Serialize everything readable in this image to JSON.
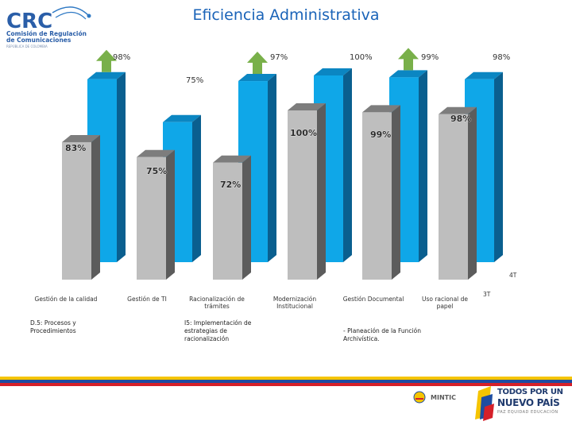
{
  "header": {
    "title": "Eficiencia Administrativa",
    "logo_text": "CRC",
    "logo_org_line1": "Comisión de Regulación",
    "logo_org_line2": "de Comunicaciones",
    "logo_org_line3": "REPÚBLICA DE COLOMBIA"
  },
  "chart_data": {
    "type": "bar",
    "title": "Eficiencia Administrativa",
    "categories": [
      "Gestión de la calidad",
      "Gestión de TI",
      "Racionalización de trámites",
      "Modernización Institucional",
      "Gestión Documental",
      "Uso racional de papel"
    ],
    "series": [
      {
        "name": "gray",
        "values": [
          83,
          75,
          72,
          100,
          99,
          98
        ],
        "labels": [
          "83%",
          "75%",
          "72%",
          "100%",
          "99%",
          "98%"
        ]
      },
      {
        "name": "blue",
        "values": [
          98,
          75,
          97,
          100,
          99,
          98
        ],
        "labels": [
          "98%",
          "75%",
          "97%",
          "100%",
          "99%",
          "98%"
        ]
      }
    ],
    "ylim": [
      0,
      100
    ],
    "axis_labels": {
      "right_top": "4T",
      "right_bottom": "3T"
    },
    "colors": {
      "gray": "#bebebe",
      "blue": "#0fa7e8",
      "arrow": "#79b04a"
    }
  },
  "notes": {
    "n1": "D.5: Procesos y Procedimientos",
    "n2": "I5: Implementación de estrategias de racionalización",
    "n3": "- Planeación de la Función Archivística."
  },
  "footer": {
    "mintic": "MINTIC",
    "gov_line1": "TODOS POR UN",
    "gov_line2": "NUEVO PAÍS",
    "gov_line3": "PAZ  EQUIDAD  EDUCACIÓN"
  }
}
